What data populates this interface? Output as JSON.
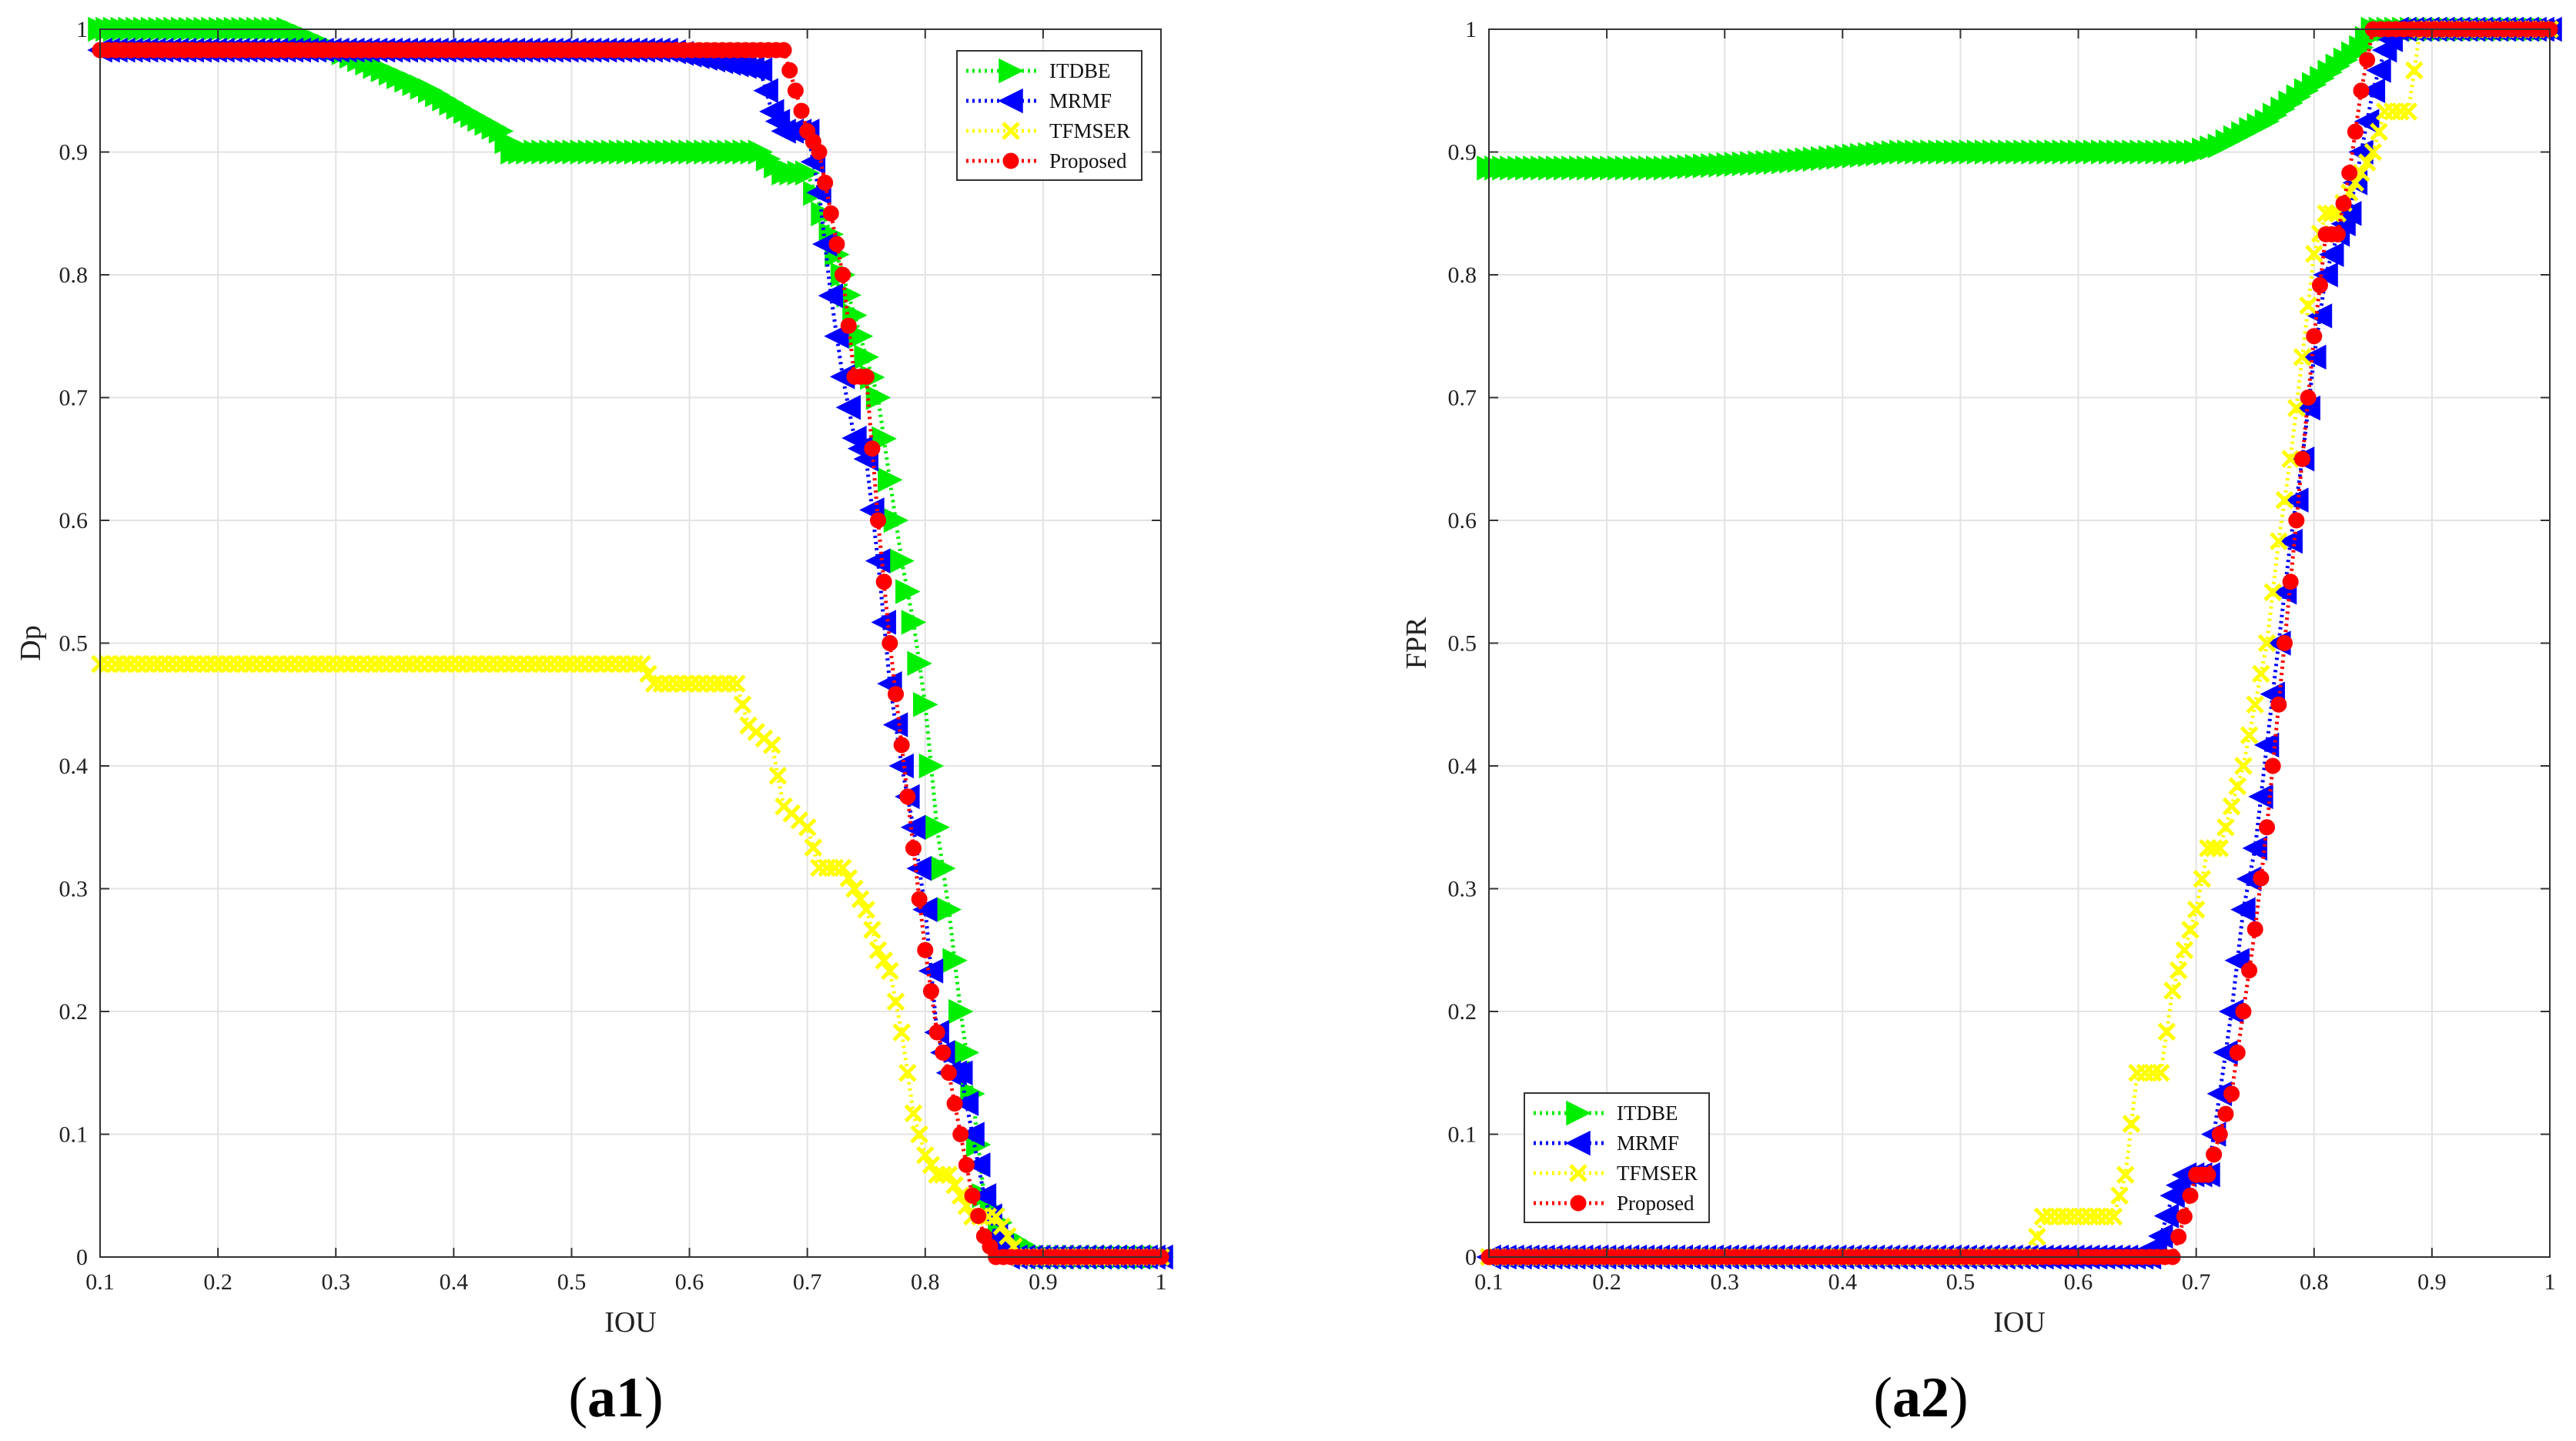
{
  "chart_data": [
    {
      "type": "line",
      "panel": "a1",
      "caption": "(a1)",
      "xlabel": "IOU",
      "ylabel": "Dp",
      "xlim": [
        0.1,
        1
      ],
      "ylim": [
        0,
        1
      ],
      "xticks": [
        0.1,
        0.2,
        0.3,
        0.4,
        0.5,
        0.6,
        0.7,
        0.8,
        0.9,
        1
      ],
      "xtick_labels": [
        "0.1",
        "0.2",
        "0.3",
        "0.4",
        "0.5",
        "0.6",
        "0.7",
        "0.8",
        "0.9",
        "1"
      ],
      "yticks": [
        0,
        0.1,
        0.2,
        0.3,
        0.4,
        0.5,
        0.6,
        0.7,
        0.8,
        0.9,
        1
      ],
      "ytick_labels": [
        "0",
        "0.1",
        "0.2",
        "0.3",
        "0.4",
        "0.5",
        "0.6",
        "0.7",
        "0.8",
        "0.9",
        "1"
      ],
      "grid": true,
      "legend_position": "top-right",
      "series": [
        {
          "name": "ITDBE",
          "color": "#00ee00",
          "marker": "triangle-right",
          "x": [
            0.1,
            0.26,
            0.34,
            0.38,
            0.41,
            0.44,
            0.45,
            0.66,
            0.68,
            0.7,
            0.72,
            0.73,
            0.74,
            0.75,
            0.76,
            0.77,
            0.78,
            0.79,
            0.8,
            0.81,
            0.82,
            0.83,
            0.84,
            0.85,
            0.87,
            0.9,
            1.0
          ],
          "y": [
            1.0,
            1.0,
            0.967,
            0.95,
            0.933,
            0.917,
            0.9,
            0.9,
            0.883,
            0.883,
            0.833,
            0.8,
            0.767,
            0.733,
            0.7,
            0.633,
            0.567,
            0.517,
            0.45,
            0.35,
            0.283,
            0.2,
            0.133,
            0.05,
            0.017,
            0.0,
            0.0
          ]
        },
        {
          "name": "MRMF",
          "color": "#0000ff",
          "marker": "triangle-left",
          "x": [
            0.1,
            0.58,
            0.66,
            0.67,
            0.68,
            0.7,
            0.71,
            0.72,
            0.73,
            0.74,
            0.75,
            0.76,
            0.77,
            0.78,
            0.79,
            0.8,
            0.81,
            0.82,
            0.83,
            0.84,
            0.85,
            0.86,
            0.87,
            1.0
          ],
          "y": [
            0.983,
            0.983,
            0.967,
            0.933,
            0.917,
            0.917,
            0.867,
            0.783,
            0.717,
            0.667,
            0.65,
            0.567,
            0.467,
            0.4,
            0.35,
            0.283,
            0.183,
            0.15,
            0.15,
            0.1,
            0.05,
            0.017,
            0.0,
            0.0
          ]
        },
        {
          "name": "TFMSER",
          "color": "#ffff00",
          "marker": "x",
          "x": [
            0.1,
            0.56,
            0.57,
            0.64,
            0.65,
            0.67,
            0.68,
            0.7,
            0.71,
            0.73,
            0.74,
            0.75,
            0.76,
            0.77,
            0.78,
            0.79,
            0.8,
            0.81,
            0.82,
            0.83,
            0.84,
            0.86,
            0.87,
            0.88,
            1.0
          ],
          "y": [
            0.483,
            0.483,
            0.467,
            0.467,
            0.433,
            0.417,
            0.367,
            0.35,
            0.317,
            0.317,
            0.3,
            0.283,
            0.25,
            0.233,
            0.183,
            0.117,
            0.083,
            0.067,
            0.067,
            0.05,
            0.033,
            0.033,
            0.017,
            0.0,
            0.0
          ]
        },
        {
          "name": "Proposed",
          "color": "#ff0000",
          "marker": "circle",
          "x": [
            0.1,
            0.68,
            0.69,
            0.7,
            0.71,
            0.72,
            0.73,
            0.74,
            0.75,
            0.76,
            0.77,
            0.78,
            0.79,
            0.8,
            0.81,
            0.82,
            0.83,
            0.84,
            0.85,
            0.86,
            1.0
          ],
          "y": [
            0.983,
            0.983,
            0.95,
            0.917,
            0.9,
            0.85,
            0.8,
            0.717,
            0.717,
            0.6,
            0.5,
            0.417,
            0.333,
            0.25,
            0.183,
            0.15,
            0.1,
            0.05,
            0.017,
            0.0,
            0.0
          ]
        }
      ]
    },
    {
      "type": "line",
      "panel": "a2",
      "caption": "(a2)",
      "xlabel": "IOU",
      "ylabel": "FPR",
      "xlim": [
        0.1,
        1
      ],
      "ylim": [
        0,
        1
      ],
      "xticks": [
        0.1,
        0.2,
        0.3,
        0.4,
        0.5,
        0.6,
        0.7,
        0.8,
        0.9,
        1
      ],
      "xtick_labels": [
        "0.1",
        "0.2",
        "0.3",
        "0.4",
        "0.5",
        "0.6",
        "0.7",
        "0.8",
        "0.9",
        "1"
      ],
      "yticks": [
        0,
        0.1,
        0.2,
        0.3,
        0.4,
        0.5,
        0.6,
        0.7,
        0.8,
        0.9,
        1
      ],
      "ytick_labels": [
        "0",
        "0.1",
        "0.2",
        "0.3",
        "0.4",
        "0.5",
        "0.6",
        "0.7",
        "0.8",
        "0.9",
        "1"
      ],
      "grid": true,
      "legend_position": "bottom-left",
      "series": [
        {
          "name": "ITDBE",
          "color": "#00ee00",
          "marker": "triangle-right",
          "x": [
            0.1,
            0.25,
            0.35,
            0.45,
            0.7,
            0.72,
            0.74,
            0.76,
            0.78,
            0.8,
            0.82,
            0.84,
            0.85,
            0.87,
            1.0
          ],
          "y": [
            0.887,
            0.887,
            0.892,
            0.9,
            0.9,
            0.905,
            0.915,
            0.925,
            0.94,
            0.955,
            0.97,
            0.985,
            1.0,
            1.0,
            1.0
          ]
        },
        {
          "name": "MRMF",
          "color": "#0000ff",
          "marker": "triangle-left",
          "x": [
            0.1,
            0.66,
            0.67,
            0.68,
            0.69,
            0.71,
            0.72,
            0.73,
            0.74,
            0.75,
            0.76,
            0.77,
            0.78,
            0.79,
            0.8,
            0.81,
            0.82,
            0.83,
            0.84,
            0.85,
            0.86,
            0.87,
            1.0
          ],
          "y": [
            0.0,
            0.0,
            0.017,
            0.05,
            0.067,
            0.067,
            0.133,
            0.2,
            0.283,
            0.333,
            0.417,
            0.5,
            0.583,
            0.65,
            0.733,
            0.8,
            0.833,
            0.85,
            0.9,
            0.95,
            0.983,
            1.0,
            1.0
          ]
        },
        {
          "name": "TFMSER",
          "color": "#ffff00",
          "marker": "x",
          "x": [
            0.1,
            0.56,
            0.57,
            0.63,
            0.64,
            0.65,
            0.67,
            0.68,
            0.69,
            0.7,
            0.71,
            0.72,
            0.73,
            0.74,
            0.75,
            0.76,
            0.77,
            0.78,
            0.79,
            0.8,
            0.81,
            0.82,
            0.83,
            0.84,
            0.85,
            0.86,
            0.88,
            0.89,
            1.0
          ],
          "y": [
            0.0,
            0.0,
            0.033,
            0.033,
            0.067,
            0.15,
            0.15,
            0.217,
            0.25,
            0.283,
            0.333,
            0.333,
            0.367,
            0.4,
            0.45,
            0.5,
            0.583,
            0.65,
            0.733,
            0.817,
            0.85,
            0.85,
            0.867,
            0.883,
            0.9,
            0.933,
            0.933,
            1.0,
            1.0
          ]
        },
        {
          "name": "Proposed",
          "color": "#ff0000",
          "marker": "circle",
          "x": [
            0.1,
            0.68,
            0.69,
            0.7,
            0.71,
            0.72,
            0.73,
            0.74,
            0.75,
            0.76,
            0.77,
            0.78,
            0.79,
            0.8,
            0.81,
            0.82,
            0.83,
            0.84,
            0.85,
            1.0
          ],
          "y": [
            0.0,
            0.0,
            0.033,
            0.067,
            0.067,
            0.1,
            0.133,
            0.2,
            0.267,
            0.35,
            0.45,
            0.55,
            0.65,
            0.75,
            0.833,
            0.833,
            0.883,
            0.95,
            1.0,
            1.0
          ]
        }
      ]
    }
  ]
}
